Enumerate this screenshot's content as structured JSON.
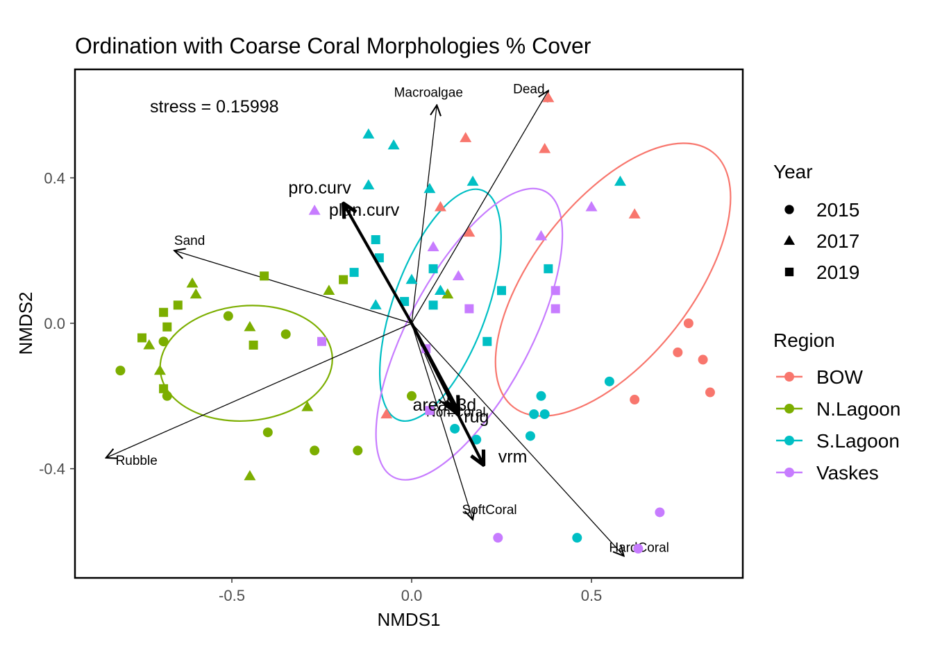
{
  "chart_data": {
    "type": "scatter",
    "title": "Ordination with Coarse Coral Morphologies % Cover",
    "xlabel": "NMDS1",
    "ylabel": "NMDS2",
    "xlim": [
      -0.93,
      0.91
    ],
    "ylim": [
      -0.7,
      0.7
    ],
    "xticks": [
      -0.5,
      0.0,
      0.5
    ],
    "yticks": [
      -0.4,
      0.0,
      0.4
    ],
    "xtick_labels": [
      "-0.5",
      "0.0",
      "0.5"
    ],
    "ytick_labels": [
      "-0.4",
      "0.0",
      "0.4"
    ],
    "grid": false,
    "legend_placement": "right",
    "annotation": "stress = 0.15998",
    "legends": {
      "year": {
        "title": "Year",
        "items": [
          {
            "label": "2015",
            "shape": "circle"
          },
          {
            "label": "2017",
            "shape": "triangle"
          },
          {
            "label": "2019",
            "shape": "square"
          }
        ]
      },
      "region": {
        "title": "Region",
        "items": [
          {
            "label": "BOW",
            "color": "#F8766D"
          },
          {
            "label": "N.Lagoon",
            "color": "#7CAE00"
          },
          {
            "label": "S.Lagoon",
            "color": "#00BFC4"
          },
          {
            "label": "Vaskes",
            "color": "#C77CFF"
          }
        ]
      }
    },
    "points": [
      {
        "x": -0.81,
        "y": -0.13,
        "year": "2015",
        "region": "N.Lagoon"
      },
      {
        "x": -0.69,
        "y": -0.05,
        "year": "2015",
        "region": "N.Lagoon"
      },
      {
        "x": -0.68,
        "y": -0.2,
        "year": "2015",
        "region": "N.Lagoon"
      },
      {
        "x": -0.51,
        "y": 0.02,
        "year": "2015",
        "region": "N.Lagoon"
      },
      {
        "x": -0.35,
        "y": -0.03,
        "year": "2015",
        "region": "N.Lagoon"
      },
      {
        "x": -0.4,
        "y": -0.3,
        "year": "2015",
        "region": "N.Lagoon"
      },
      {
        "x": -0.27,
        "y": -0.35,
        "year": "2015",
        "region": "N.Lagoon"
      },
      {
        "x": -0.15,
        "y": -0.35,
        "year": "2015",
        "region": "N.Lagoon"
      },
      {
        "x": 0.0,
        "y": -0.2,
        "year": "2015",
        "region": "N.Lagoon"
      },
      {
        "x": -0.73,
        "y": -0.06,
        "year": "2017",
        "region": "N.Lagoon"
      },
      {
        "x": -0.7,
        "y": -0.13,
        "year": "2017",
        "region": "N.Lagoon"
      },
      {
        "x": -0.61,
        "y": 0.11,
        "year": "2017",
        "region": "N.Lagoon"
      },
      {
        "x": -0.6,
        "y": 0.08,
        "year": "2017",
        "region": "N.Lagoon"
      },
      {
        "x": -0.45,
        "y": -0.01,
        "year": "2017",
        "region": "N.Lagoon"
      },
      {
        "x": -0.29,
        "y": -0.23,
        "year": "2017",
        "region": "N.Lagoon"
      },
      {
        "x": -0.45,
        "y": -0.42,
        "year": "2017",
        "region": "N.Lagoon"
      },
      {
        "x": -0.23,
        "y": 0.09,
        "year": "2017",
        "region": "N.Lagoon"
      },
      {
        "x": 0.1,
        "y": 0.08,
        "year": "2017",
        "region": "N.Lagoon"
      },
      {
        "x": -0.75,
        "y": -0.04,
        "year": "2019",
        "region": "N.Lagoon"
      },
      {
        "x": -0.69,
        "y": 0.03,
        "year": "2019",
        "region": "N.Lagoon"
      },
      {
        "x": -0.68,
        "y": -0.01,
        "year": "2019",
        "region": "N.Lagoon"
      },
      {
        "x": -0.65,
        "y": 0.05,
        "year": "2019",
        "region": "N.Lagoon"
      },
      {
        "x": -0.69,
        "y": -0.18,
        "year": "2019",
        "region": "N.Lagoon"
      },
      {
        "x": -0.41,
        "y": 0.13,
        "year": "2019",
        "region": "N.Lagoon"
      },
      {
        "x": -0.44,
        "y": -0.06,
        "year": "2019",
        "region": "N.Lagoon"
      },
      {
        "x": -0.19,
        "y": 0.12,
        "year": "2019",
        "region": "N.Lagoon"
      },
      {
        "x": 0.12,
        "y": -0.29,
        "year": "2015",
        "region": "S.Lagoon"
      },
      {
        "x": 0.18,
        "y": -0.32,
        "year": "2015",
        "region": "S.Lagoon"
      },
      {
        "x": 0.33,
        "y": -0.31,
        "year": "2015",
        "region": "S.Lagoon"
      },
      {
        "x": 0.34,
        "y": -0.25,
        "year": "2015",
        "region": "S.Lagoon"
      },
      {
        "x": 0.37,
        "y": -0.25,
        "year": "2015",
        "region": "S.Lagoon"
      },
      {
        "x": 0.36,
        "y": -0.2,
        "year": "2015",
        "region": "S.Lagoon"
      },
      {
        "x": 0.55,
        "y": -0.16,
        "year": "2015",
        "region": "S.Lagoon"
      },
      {
        "x": 0.46,
        "y": -0.59,
        "year": "2015",
        "region": "S.Lagoon"
      },
      {
        "x": -0.12,
        "y": 0.52,
        "year": "2017",
        "region": "S.Lagoon"
      },
      {
        "x": -0.05,
        "y": 0.49,
        "year": "2017",
        "region": "S.Lagoon"
      },
      {
        "x": -0.12,
        "y": 0.38,
        "year": "2017",
        "region": "S.Lagoon"
      },
      {
        "x": 0.05,
        "y": 0.37,
        "year": "2017",
        "region": "S.Lagoon"
      },
      {
        "x": 0.17,
        "y": 0.39,
        "year": "2017",
        "region": "S.Lagoon"
      },
      {
        "x": 0.58,
        "y": 0.39,
        "year": "2017",
        "region": "S.Lagoon"
      },
      {
        "x": 0.0,
        "y": 0.12,
        "year": "2017",
        "region": "S.Lagoon"
      },
      {
        "x": -0.1,
        "y": 0.05,
        "year": "2017",
        "region": "S.Lagoon"
      },
      {
        "x": 0.08,
        "y": 0.09,
        "year": "2017",
        "region": "S.Lagoon"
      },
      {
        "x": -0.1,
        "y": 0.23,
        "year": "2019",
        "region": "S.Lagoon"
      },
      {
        "x": -0.09,
        "y": 0.18,
        "year": "2019",
        "region": "S.Lagoon"
      },
      {
        "x": -0.16,
        "y": 0.14,
        "year": "2019",
        "region": "S.Lagoon"
      },
      {
        "x": -0.02,
        "y": 0.06,
        "year": "2019",
        "region": "S.Lagoon"
      },
      {
        "x": 0.06,
        "y": 0.05,
        "year": "2019",
        "region": "S.Lagoon"
      },
      {
        "x": 0.06,
        "y": 0.15,
        "year": "2019",
        "region": "S.Lagoon"
      },
      {
        "x": 0.25,
        "y": 0.09,
        "year": "2019",
        "region": "S.Lagoon"
      },
      {
        "x": 0.38,
        "y": 0.15,
        "year": "2019",
        "region": "S.Lagoon"
      },
      {
        "x": 0.21,
        "y": -0.05,
        "year": "2019",
        "region": "S.Lagoon"
      },
      {
        "x": 0.77,
        "y": 0.0,
        "year": "2015",
        "region": "BOW"
      },
      {
        "x": 0.74,
        "y": -0.08,
        "year": "2015",
        "region": "BOW"
      },
      {
        "x": 0.81,
        "y": -0.1,
        "year": "2015",
        "region": "BOW"
      },
      {
        "x": 0.83,
        "y": -0.19,
        "year": "2015",
        "region": "BOW"
      },
      {
        "x": 0.62,
        "y": -0.21,
        "year": "2015",
        "region": "BOW"
      },
      {
        "x": 0.38,
        "y": 0.62,
        "year": "2017",
        "region": "BOW"
      },
      {
        "x": 0.15,
        "y": 0.51,
        "year": "2017",
        "region": "BOW"
      },
      {
        "x": 0.37,
        "y": 0.48,
        "year": "2017",
        "region": "BOW"
      },
      {
        "x": 0.08,
        "y": 0.32,
        "year": "2017",
        "region": "BOW"
      },
      {
        "x": 0.62,
        "y": 0.3,
        "year": "2017",
        "region": "BOW"
      },
      {
        "x": 0.16,
        "y": 0.25,
        "year": "2017",
        "region": "BOW"
      },
      {
        "x": -0.07,
        "y": -0.25,
        "year": "2017",
        "region": "BOW"
      },
      {
        "x": 0.24,
        "y": -0.59,
        "year": "2015",
        "region": "Vaskes"
      },
      {
        "x": 0.63,
        "y": -0.62,
        "year": "2015",
        "region": "Vaskes"
      },
      {
        "x": 0.69,
        "y": -0.52,
        "year": "2015",
        "region": "Vaskes"
      },
      {
        "x": -0.27,
        "y": 0.31,
        "year": "2017",
        "region": "Vaskes"
      },
      {
        "x": 0.06,
        "y": 0.21,
        "year": "2017",
        "region": "Vaskes"
      },
      {
        "x": 0.13,
        "y": 0.13,
        "year": "2017",
        "region": "Vaskes"
      },
      {
        "x": 0.36,
        "y": 0.24,
        "year": "2017",
        "region": "Vaskes"
      },
      {
        "x": 0.5,
        "y": 0.32,
        "year": "2017",
        "region": "Vaskes"
      },
      {
        "x": -0.25,
        "y": -0.05,
        "year": "2019",
        "region": "Vaskes"
      },
      {
        "x": 0.04,
        "y": -0.07,
        "year": "2019",
        "region": "Vaskes"
      },
      {
        "x": 0.05,
        "y": -0.24,
        "year": "2019",
        "region": "Vaskes"
      },
      {
        "x": 0.16,
        "y": 0.04,
        "year": "2019",
        "region": "Vaskes"
      },
      {
        "x": 0.4,
        "y": 0.09,
        "year": "2019",
        "region": "Vaskes"
      },
      {
        "x": 0.4,
        "y": 0.04,
        "year": "2019",
        "region": "Vaskes"
      }
    ],
    "ellipses": [
      {
        "region": "N.Lagoon",
        "cx": -0.46,
        "cy": -0.11,
        "rx": 0.24,
        "ry": 0.16,
        "angle": -5
      },
      {
        "region": "S.Lagoon",
        "cx": 0.08,
        "cy": 0.05,
        "rx": 0.34,
        "ry": 0.13,
        "angle": -70
      },
      {
        "region": "Vaskes",
        "cx": 0.16,
        "cy": -0.03,
        "rx": 0.45,
        "ry": 0.17,
        "angle": -62
      },
      {
        "region": "BOW",
        "cx": 0.56,
        "cy": 0.12,
        "rx": 0.45,
        "ry": 0.22,
        "angle": -52
      }
    ],
    "vectors_thin": [
      {
        "label": "Macroalgae",
        "x": 0.07,
        "y": 0.6
      },
      {
        "label": "Dead",
        "x": 0.38,
        "y": 0.64
      },
      {
        "label": "Sand",
        "x": -0.66,
        "y": 0.2
      },
      {
        "label": "Rubble",
        "x": -0.85,
        "y": -0.37
      },
      {
        "label": "SoftCoral",
        "x": 0.17,
        "y": -0.54
      },
      {
        "label": "HardCoral",
        "x": 0.59,
        "y": -0.64
      },
      {
        "label": "Non.Coral",
        "x": 0.1,
        "y": -0.23
      }
    ],
    "vectors_bold": [
      {
        "label": "pro.curv",
        "x": -0.19,
        "y": 0.33
      },
      {
        "label": "plan.curv",
        "x": -0.19,
        "y": 0.33
      },
      {
        "label": "area_3d",
        "x": 0.13,
        "y": -0.24
      },
      {
        "label": "rug",
        "x": 0.13,
        "y": -0.25
      },
      {
        "label": "vrm",
        "x": 0.2,
        "y": -0.39
      }
    ]
  }
}
